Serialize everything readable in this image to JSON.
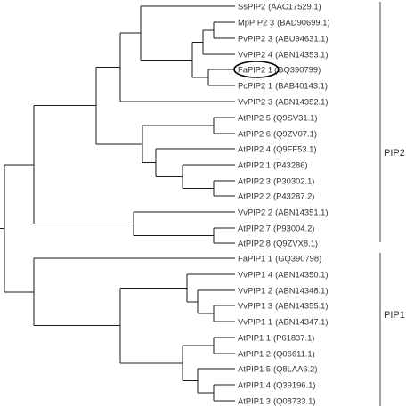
{
  "tree": {
    "leaves": [
      {
        "name": "SsPIP2",
        "accession": "(AAC17529.1)"
      },
      {
        "name": "MpPIP2 3",
        "accession": "(BAD90699.1)"
      },
      {
        "name": "PvPIP2 3",
        "accession": "(ABU94631.1)"
      },
      {
        "name": "VvPIP2 4",
        "accession": "(ABN14353.1)"
      },
      {
        "name": "FaPIP2 1",
        "accession": "(GQ390799)",
        "highlighted": true
      },
      {
        "name": "PcPIP2 1",
        "accession": "(BAB40143.1)"
      },
      {
        "name": "VvPIP2 3",
        "accession": "(ABN14352.1)"
      },
      {
        "name": "AtPIP2 5",
        "accession": "(Q9SV31.1)"
      },
      {
        "name": "AtPIP2 6",
        "accession": "(Q9ZV07.1)"
      },
      {
        "name": "AtPIP2 4",
        "accession": "(Q9FF53.1)"
      },
      {
        "name": "AtPIP2 1",
        "accession": "(P43286)"
      },
      {
        "name": "AtPIP2 3",
        "accession": "(P30302.1)"
      },
      {
        "name": "AtPIP2 2",
        "accession": "(P43287.2)"
      },
      {
        "name": "VvPIP2 2",
        "accession": "(ABN14351.1)"
      },
      {
        "name": "AtPIP2 7",
        "accession": "(P93004.2)"
      },
      {
        "name": "AtPIP2 8",
        "accession": "(Q9ZVX8.1)"
      },
      {
        "name": "FaPIP1 1",
        "accession": "(GQ390798)"
      },
      {
        "name": "VvPIP1 4",
        "accession": "(ABN14350.1)"
      },
      {
        "name": "VvPIP1 2",
        "accession": "(ABN14348.1)"
      },
      {
        "name": "VvPIP1 3",
        "accession": "(ABN14355.1)"
      },
      {
        "name": "VvPIP1 1",
        "accession": "(ABN14347.1)"
      },
      {
        "name": "AtPIP1 1",
        "accession": "(P61837.1)"
      },
      {
        "name": "AtPIP1 2",
        "accession": "(Q06611.1)"
      },
      {
        "name": "AtPIP1 5",
        "accession": "(Q8LAA6.2)"
      },
      {
        "name": "AtPIP1 4",
        "accession": "(Q39196.1)"
      },
      {
        "name": "AtPIP1 3",
        "accession": "(Q08733.1)"
      }
    ],
    "groups": [
      {
        "label": "PIP2"
      },
      {
        "label": "PIP1"
      }
    ]
  }
}
